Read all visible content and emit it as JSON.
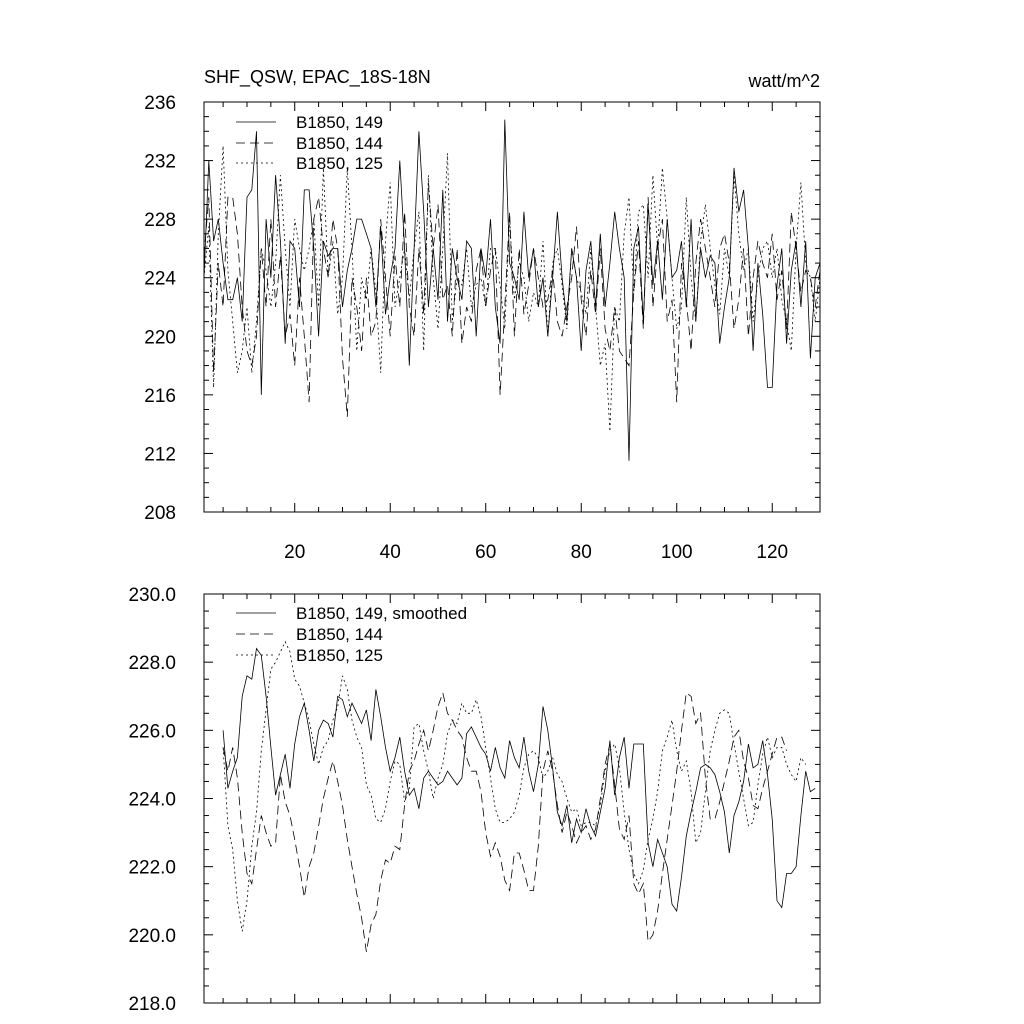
{
  "chart_data": [
    {
      "type": "line",
      "title": "SHF_QSW, EPAC_18S-18N",
      "units": "watt/m^2",
      "xlim": [
        1,
        130
      ],
      "ylim": [
        208,
        236
      ],
      "xticks": [
        20,
        40,
        60,
        80,
        100,
        120
      ],
      "yticks": [
        208,
        212,
        216,
        220,
        224,
        228,
        232,
        236
      ],
      "ytick_labels": [
        "208",
        "212",
        "216",
        "220",
        "224",
        "228",
        "232",
        "236"
      ],
      "xtick_labels": [
        "20",
        "40",
        "60",
        "80",
        "100",
        "120"
      ],
      "legend_position": "top-left",
      "series": [
        {
          "name": "B1850, 149",
          "dash": "solid",
          "values": [
            224.0,
            232.0,
            226.5,
            228.0,
            225.0,
            222.5,
            222.5,
            224.0,
            221.0,
            229.5,
            230.0,
            234.0,
            216.0,
            228.0,
            224.0,
            231.0,
            226.5,
            219.5,
            226.5,
            226.0,
            222.0,
            230.0,
            230.0,
            226.0,
            220.0,
            226.5,
            225.5,
            226.0,
            226.0,
            222.0,
            224.5,
            226.0,
            228.0,
            228.0,
            227.0,
            226.0,
            222.0,
            227.5,
            221.5,
            224.0,
            226.0,
            232.0,
            226.0,
            218.0,
            226.0,
            234.0,
            228.5,
            222.0,
            226.0,
            222.5,
            230.0,
            221.0,
            226.0,
            224.0,
            222.5,
            226.5,
            226.0,
            220.0,
            226.0,
            224.0,
            228.0,
            222.0,
            219.5,
            234.8,
            225.0,
            224.0,
            222.5,
            228.5,
            224.0,
            226.0,
            222.0,
            224.0,
            220.0,
            224.0,
            228.5,
            224.0,
            221.0,
            226.0,
            224.0,
            219.0,
            224.5,
            226.5,
            222.0,
            227.0,
            222.0,
            225.0,
            228.5,
            226.0,
            224.0,
            211.5,
            226.0,
            227.5,
            221.0,
            229.0,
            223.5,
            226.5,
            222.5,
            228.0,
            224.0,
            224.5,
            226.5,
            222.0,
            228.0,
            221.0,
            226.0,
            224.0,
            225.5,
            225.0,
            219.5,
            222.0,
            224.0,
            231.5,
            228.5,
            230.0,
            226.0,
            219.0,
            225.0,
            221.5,
            216.5,
            216.5,
            223.5,
            226.0,
            219.5,
            224.5,
            226.5,
            222.0,
            226.5,
            218.5,
            224.0,
            225.0
          ]
        },
        {
          "name": "B1850, 144",
          "dash": "long-dash",
          "values": [
            225.5,
            229.5,
            217.5,
            225.0,
            222.0,
            229.5,
            229.5,
            227.0,
            222.0,
            219.0,
            218.0,
            220.0,
            226.0,
            222.0,
            228.0,
            222.0,
            225.5,
            220.0,
            221.5,
            218.0,
            224.0,
            220.0,
            215.5,
            228.0,
            229.5,
            226.0,
            224.0,
            228.0,
            226.0,
            218.5,
            214.5,
            224.0,
            222.0,
            219.0,
            224.0,
            220.0,
            221.0,
            228.0,
            224.0,
            220.0,
            225.5,
            222.0,
            228.5,
            222.0,
            220.0,
            226.0,
            221.5,
            230.5,
            226.0,
            229.0,
            222.5,
            223.5,
            220.0,
            226.0,
            219.5,
            222.0,
            221.0,
            224.5,
            226.0,
            222.0,
            224.5,
            226.0,
            216.0,
            222.0,
            228.5,
            220.0,
            226.0,
            221.5,
            223.5,
            226.0,
            224.0,
            222.0,
            222.5,
            224.5,
            221.0,
            220.0,
            222.0,
            224.0,
            227.5,
            222.5,
            220.0,
            224.5,
            221.5,
            226.0,
            220.5,
            219.0,
            222.0,
            219.0,
            218.5,
            218.0,
            223.0,
            226.5,
            220.5,
            229.5,
            222.0,
            226.0,
            228.0,
            221.0,
            222.5,
            215.5,
            225.0,
            222.5,
            219.0,
            225.0,
            228.0,
            226.0,
            224.0,
            222.0,
            226.0,
            227.0,
            225.0,
            220.5,
            222.5,
            226.0,
            220.0,
            224.0,
            226.5,
            225.0,
            224.0,
            227.0,
            222.5,
            224.5,
            220.5,
            228.5,
            226.0,
            223.0,
            224.5,
            224.0,
            222.0,
            224.5
          ]
        },
        {
          "name": "B1850, 125",
          "dash": "dot",
          "values": [
            224.0,
            227.5,
            216.5,
            227.0,
            233.0,
            224.5,
            221.0,
            217.5,
            219.0,
            222.0,
            217.5,
            221.0,
            226.0,
            224.5,
            222.0,
            225.0,
            231.0,
            226.0,
            222.0,
            228.0,
            226.0,
            224.5,
            226.0,
            228.0,
            222.0,
            231.5,
            224.0,
            226.5,
            221.5,
            224.0,
            231.5,
            226.0,
            219.0,
            224.0,
            222.5,
            226.0,
            223.0,
            217.5,
            226.5,
            230.5,
            222.0,
            224.0,
            226.0,
            222.5,
            226.0,
            228.5,
            219.0,
            231.0,
            224.0,
            220.5,
            226.0,
            232.5,
            221.0,
            224.0,
            223.5,
            226.0,
            222.0,
            223.5,
            224.0,
            222.0,
            226.0,
            226.0,
            223.5,
            220.5,
            228.0,
            222.5,
            225.0,
            224.0,
            221.0,
            223.0,
            222.0,
            226.5,
            220.0,
            225.0,
            226.0,
            223.5,
            220.5,
            226.0,
            224.0,
            223.0,
            221.5,
            226.0,
            222.0,
            218.0,
            219.5,
            213.5,
            222.0,
            221.0,
            227.0,
            229.5,
            223.0,
            228.5,
            229.0,
            224.0,
            231.0,
            226.0,
            231.5,
            228.0,
            224.0,
            220.5,
            222.0,
            229.5,
            224.0,
            221.0,
            226.5,
            229.0,
            226.0,
            223.5,
            221.5,
            226.0,
            224.0,
            231.0,
            227.0,
            224.5,
            226.0,
            221.0,
            224.0,
            226.0,
            226.5,
            224.0,
            226.0,
            222.5,
            221.0,
            219.0,
            226.0,
            230.5,
            225.0,
            224.0,
            221.0,
            224.0
          ]
        }
      ]
    },
    {
      "type": "line",
      "title": "",
      "xlim": [
        1,
        130
      ],
      "ylim": [
        218.0,
        230.0
      ],
      "yticks": [
        218.0,
        220.0,
        222.0,
        224.0,
        226.0,
        228.0,
        230.0
      ],
      "ytick_labels": [
        "218.0",
        "220.0",
        "222.0",
        "224.0",
        "226.0",
        "228.0",
        "230.0"
      ],
      "xticks": [
        20,
        40,
        60,
        80,
        100,
        120
      ],
      "legend_position": "top-left",
      "series": [
        {
          "name": "B1850, 149, smoothed",
          "dash": "solid",
          "start": 5,
          "values": [
            226.0,
            224.3,
            224.8,
            225.2,
            227.0,
            227.6,
            227.5,
            228.4,
            228.2,
            227.0,
            225.5,
            224.1,
            224.7,
            225.3,
            224.3,
            225.6,
            226.4,
            226.8,
            226.0,
            225.1,
            226.0,
            226.3,
            226.2,
            225.8,
            227.0,
            226.9,
            226.4,
            226.8,
            226.5,
            226.2,
            226.6,
            225.7,
            227.2,
            226.4,
            225.5,
            224.8,
            225.2,
            225.8,
            224.8,
            224.1,
            224.3,
            223.7,
            224.6,
            224.8,
            224.6,
            224.4,
            224.5,
            224.8,
            224.6,
            224.4,
            224.6,
            225.9,
            226.1,
            225.8,
            225.5,
            225.3,
            224.8,
            225.5,
            224.9,
            224.6,
            225.7,
            225.2,
            224.9,
            225.8,
            224.8,
            224.2,
            225.0,
            226.7,
            226.0,
            224.9,
            223.6,
            223.2,
            223.8,
            222.7,
            223.4,
            223.0,
            223.7,
            223.2,
            222.9,
            223.6,
            224.3,
            225.7,
            224.1,
            225.2,
            225.8,
            224.3,
            225.6,
            225.6,
            225.6,
            222.7,
            222.0,
            222.8,
            222.4,
            222.0,
            220.9,
            220.7,
            221.7,
            222.9,
            223.6,
            224.2,
            224.9,
            225.0,
            224.9,
            224.7,
            224.2,
            223.6,
            222.4,
            223.5,
            223.9,
            224.5,
            225.6,
            224.9,
            225.0,
            225.7,
            224.7,
            223.4,
            221.0,
            220.8,
            221.8,
            221.8,
            222.0,
            223.5,
            224.8,
            224.2,
            224.3
          ]
        },
        {
          "name": "B1850, 144",
          "dash": "long-dash",
          "start": 5,
          "values": [
            225.5,
            224.8,
            225.5,
            224.6,
            223.0,
            221.8,
            221.5,
            222.5,
            223.5,
            223.0,
            222.6,
            222.7,
            224.7,
            223.9,
            223.5,
            222.8,
            222.0,
            221.1,
            222.0,
            222.4,
            223.2,
            224.0,
            224.6,
            225.1,
            224.5,
            223.8,
            222.8,
            222.0,
            221.2,
            220.5,
            219.5,
            220.3,
            220.6,
            221.6,
            222.2,
            222.1,
            222.6,
            222.5,
            223.8,
            224.8,
            225.1,
            225.6,
            226.0,
            225.4,
            226.0,
            226.7,
            227.1,
            226.5,
            226.3,
            226.0,
            225.8,
            225.2,
            224.8,
            224.8,
            224.2,
            223.0,
            222.3,
            222.7,
            222.3,
            221.6,
            221.3,
            222.4,
            222.4,
            221.9,
            221.3,
            221.3,
            222.6,
            224.8,
            225.4,
            224.8,
            223.8,
            223.0,
            223.6,
            223.2,
            222.7,
            223.0,
            223.2,
            222.8,
            223.1,
            224.0,
            225.0,
            225.6,
            224.4,
            223.1,
            222.8,
            223.5,
            221.5,
            221.2,
            221.5,
            219.8,
            220.0,
            220.7,
            221.8,
            222.8,
            223.8,
            224.8,
            226.0,
            227.1,
            227.0,
            226.2,
            226.5,
            224.6,
            223.4,
            223.4,
            223.9,
            224.5,
            225.1,
            225.8,
            226.0,
            225.1,
            224.6,
            223.8,
            223.7,
            224.3,
            224.8,
            225.3,
            225.8,
            225.8,
            225.4
          ]
        },
        {
          "name": "B1850, 125",
          "dash": "dot",
          "start": 5,
          "values": [
            225.5,
            223.2,
            222.5,
            221.0,
            220.1,
            221.0,
            222.6,
            223.6,
            225.4,
            226.6,
            227.8,
            228.0,
            228.3,
            228.6,
            228.3,
            227.5,
            227.3,
            226.8,
            226.3,
            225.6,
            225.0,
            225.5,
            225.7,
            226.3,
            226.7,
            227.6,
            227.2,
            226.3,
            225.8,
            225.5,
            224.4,
            224.1,
            223.4,
            223.3,
            223.7,
            224.5,
            225.1,
            225.0,
            223.9,
            224.3,
            226.1,
            226.2,
            225.4,
            224.8,
            224.0,
            224.6,
            225.0,
            225.9,
            226.3,
            226.2,
            226.8,
            226.5,
            226.5,
            226.9,
            226.4,
            225.5,
            224.6,
            223.7,
            223.3,
            223.3,
            223.4,
            223.6,
            224.1,
            224.9,
            225.3,
            225.4,
            225.2,
            224.6,
            224.8,
            225.2,
            224.7,
            224.5,
            224.0,
            223.6,
            223.7,
            223.2,
            223.3,
            223.3,
            223.2,
            223.8,
            224.8,
            225.4,
            225.6,
            224.9,
            223.6,
            222.5,
            221.8,
            221.5,
            221.9,
            222.8,
            223.4,
            224.2,
            225.4,
            225.8,
            226.3,
            225.4,
            224.8,
            225.1,
            224.2,
            222.7,
            223.0,
            224.2,
            225.4,
            226.0,
            226.5,
            226.6,
            226.5,
            225.6,
            224.8,
            224.0,
            223.2,
            223.3,
            224.4,
            225.3,
            225.8,
            225.2,
            225.5,
            225.5,
            225.0,
            224.7,
            224.5,
            225.2,
            225.0
          ]
        }
      ]
    }
  ]
}
